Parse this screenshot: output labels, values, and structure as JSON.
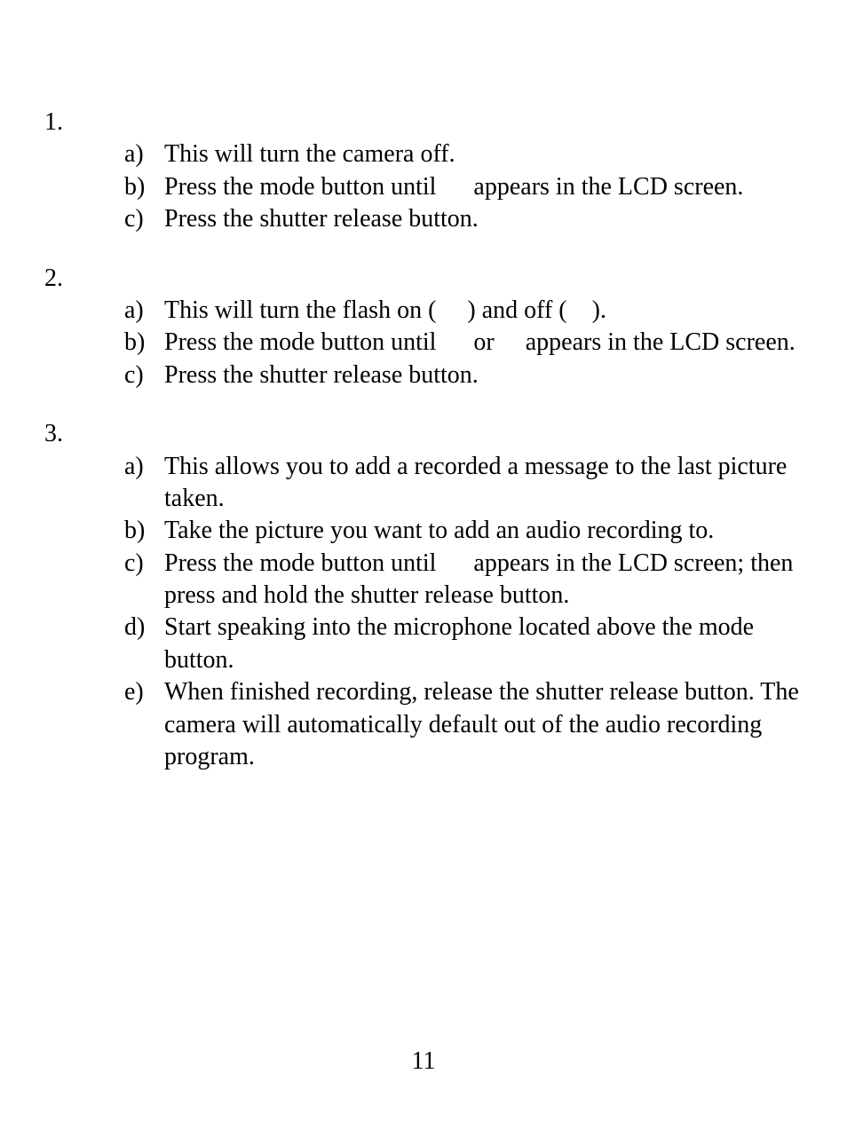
{
  "sections": [
    {
      "number": "1.",
      "items": [
        {
          "label": "a)",
          "text": "This will turn the camera off."
        },
        {
          "label": "b)",
          "text": "Press the mode button until      appears in the LCD screen."
        },
        {
          "label": "c)",
          "text": "Press the shutter release button."
        }
      ]
    },
    {
      "number": "2.",
      "items": [
        {
          "label": "a)",
          "text": "This will turn the flash on (     ) and off (    )."
        },
        {
          "label": "b)",
          "text": "Press the mode button until      or     appears in the LCD screen."
        },
        {
          "label": "c)",
          "text": "Press the shutter release button."
        }
      ]
    },
    {
      "number": "3.",
      "items": [
        {
          "label": "a)",
          "text": "This allows you to add a recorded a message to the last picture taken."
        },
        {
          "label": "b)",
          "text": "Take the picture you want to add an audio recording to."
        },
        {
          "label": "c)",
          "text": "Press the mode button until      appears in the LCD screen; then press and hold the shutter release button."
        },
        {
          "label": "d)",
          "text": "Start speaking into the microphone located above the mode button."
        },
        {
          "label": "e)",
          "text": "When finished recording, release the shutter release button. The camera will automatically default out of the audio recording program."
        }
      ]
    }
  ],
  "page_number": "11",
  "styling": {
    "font_family": "Times New Roman",
    "font_size_pt": 21,
    "text_color": "#000000",
    "background_color": "#ffffff"
  }
}
